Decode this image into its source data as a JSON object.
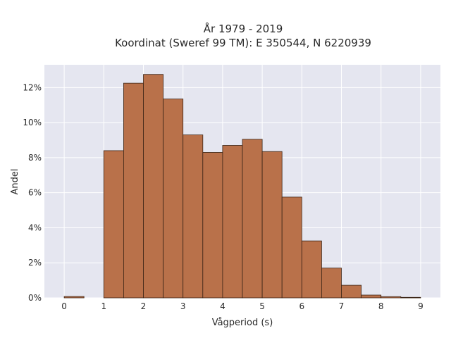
{
  "chart_data": {
    "type": "bar",
    "title_line1": "År 1979 - 2019",
    "title_line2": "Koordinat (Sweref 99 TM): E 350544, N 6220939",
    "xlabel": "Vågperiod (s)",
    "ylabel": "Andel",
    "xlim": [
      -0.5,
      9.5
    ],
    "ylim": [
      0,
      13.3
    ],
    "xticks": [
      0,
      1,
      2,
      3,
      4,
      5,
      6,
      7,
      8,
      9
    ],
    "yticks": [
      0,
      2,
      4,
      6,
      8,
      10,
      12
    ],
    "ytick_suffix": "%",
    "bin_width": 0.5,
    "bins": [
      {
        "x0": 0.0,
        "value": 0.08
      },
      {
        "x0": 1.0,
        "value": 8.4
      },
      {
        "x0": 1.5,
        "value": 12.25
      },
      {
        "x0": 2.0,
        "value": 12.75
      },
      {
        "x0": 2.5,
        "value": 11.35
      },
      {
        "x0": 3.0,
        "value": 9.3
      },
      {
        "x0": 3.5,
        "value": 8.3
      },
      {
        "x0": 4.0,
        "value": 8.7
      },
      {
        "x0": 4.5,
        "value": 9.05
      },
      {
        "x0": 5.0,
        "value": 8.35
      },
      {
        "x0": 5.5,
        "value": 5.75
      },
      {
        "x0": 6.0,
        "value": 3.25
      },
      {
        "x0": 6.5,
        "value": 1.7
      },
      {
        "x0": 7.0,
        "value": 0.72
      },
      {
        "x0": 7.5,
        "value": 0.16
      },
      {
        "x0": 8.0,
        "value": 0.07
      },
      {
        "x0": 8.5,
        "value": 0.03
      }
    ],
    "colors": {
      "bar": "#b9714a",
      "bar_edge": "#3b2517",
      "plot_background": "#e5e6f0",
      "grid": "#ffffff"
    },
    "grid": true,
    "legend": "none"
  }
}
